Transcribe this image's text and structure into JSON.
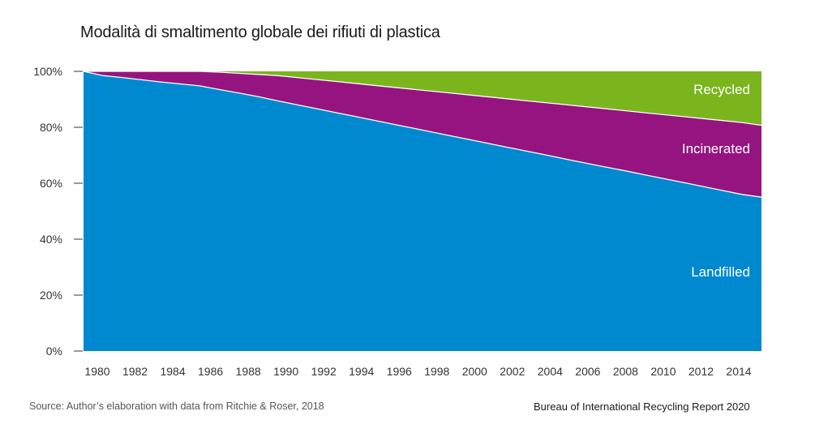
{
  "chart_data": {
    "type": "area",
    "stacked": true,
    "normalized": true,
    "title": "Modalità di smaltimento globale dei rifiuti di plastica",
    "xlabel": "",
    "ylabel": "",
    "x": [
      1980,
      1981,
      1982,
      1983,
      1984,
      1985,
      1986,
      1987,
      1988,
      1989,
      1990,
      1991,
      1992,
      1993,
      1994,
      1995,
      1996,
      1997,
      1998,
      1999,
      2000,
      2001,
      2002,
      2003,
      2004,
      2005,
      2006,
      2007,
      2008,
      2009,
      2010,
      2011,
      2012,
      2013,
      2014,
      2015
    ],
    "xlim": [
      1980,
      2015
    ],
    "ylim": [
      0,
      100
    ],
    "x_ticks": [
      "1980",
      "1982",
      "1984",
      "1986",
      "1988",
      "1990",
      "1992",
      "1994",
      "1996",
      "1998",
      "2000",
      "2002",
      "2004",
      "2006",
      "2008",
      "2010",
      "2012",
      "2014"
    ],
    "y_ticks": [
      "0%",
      "20%",
      "40%",
      "60%",
      "80%",
      "100%"
    ],
    "grid": false,
    "legend": "inline-right",
    "series": [
      {
        "name": "Landfilled",
        "color": "#0089cf",
        "values": [
          100,
          98.5,
          97.8,
          97.0,
          96.2,
          95.5,
          94.8,
          93.5,
          92.3,
          91.0,
          89.5,
          88.1,
          86.7,
          85.3,
          83.9,
          82.5,
          81.1,
          79.7,
          78.3,
          76.9,
          75.5,
          74.1,
          72.7,
          71.3,
          69.9,
          68.5,
          67.1,
          65.7,
          64.4,
          63.0,
          61.6,
          60.2,
          58.8,
          57.4,
          56.0,
          55.0
        ]
      },
      {
        "name": "Incinerated",
        "color": "#951480",
        "values": [
          0,
          1.5,
          2.2,
          3.0,
          3.8,
          4.5,
          5.2,
          6.2,
          7.0,
          7.9,
          9.0,
          9.7,
          10.4,
          11.1,
          11.8,
          12.5,
          13.2,
          13.9,
          14.6,
          15.3,
          16.0,
          16.7,
          17.4,
          18.1,
          18.8,
          19.5,
          20.2,
          20.9,
          21.5,
          22.2,
          22.9,
          23.6,
          24.3,
          25.0,
          25.7,
          25.7
        ]
      },
      {
        "name": "Recycled",
        "color": "#7ab51d",
        "values": [
          0,
          0,
          0,
          0,
          0,
          0,
          0,
          0.3,
          0.7,
          1.1,
          1.5,
          2.2,
          2.9,
          3.6,
          4.3,
          5.0,
          5.7,
          6.4,
          7.1,
          7.8,
          8.5,
          9.2,
          9.9,
          10.6,
          11.3,
          12.0,
          12.7,
          13.4,
          14.1,
          14.8,
          15.5,
          16.2,
          16.9,
          17.6,
          18.3,
          19.3
        ]
      }
    ]
  },
  "header": {
    "title": "Modalità di smaltimento globale dei rifiuti di plastica"
  },
  "footer": {
    "source": "Source: Author’s elaboration with data from Ritchie & Roser, 2018",
    "credit": "Bureau of International Recycling Report 2020"
  }
}
